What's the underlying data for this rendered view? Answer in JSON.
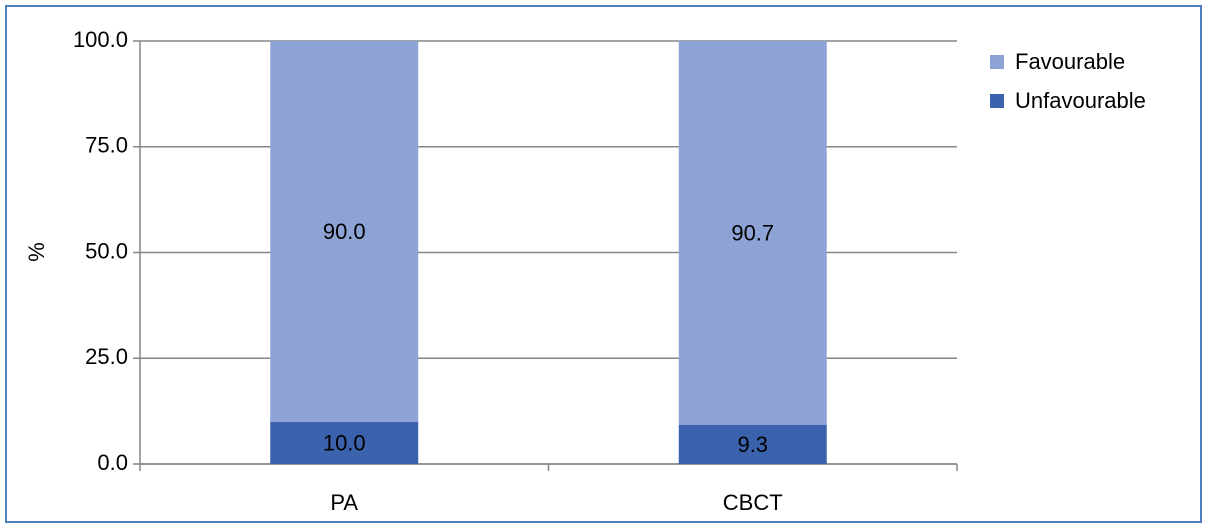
{
  "chart_data": {
    "type": "stacked_bar",
    "y_label": "%",
    "categories": [
      "PA",
      "CBCT"
    ],
    "series": [
      {
        "name": "Favourable",
        "color": "#8ea3d5",
        "values": [
          90.0,
          90.7
        ],
        "value_labels": [
          "90.0",
          "90.7"
        ]
      },
      {
        "name": "Unfavourable",
        "color": "#3b63ad",
        "values": [
          10.0,
          9.3
        ],
        "value_labels": [
          "10.0",
          "9.3"
        ]
      }
    ],
    "ylim": [
      0,
      100
    ],
    "yticks": [
      {
        "value": 0,
        "label": "0.0"
      },
      {
        "value": 25,
        "label": "25.0"
      },
      {
        "value": 50,
        "label": "50.0"
      },
      {
        "value": 75,
        "label": "75.0"
      },
      {
        "value": 100,
        "label": "100.0"
      }
    ],
    "grid": true,
    "legend": "right"
  }
}
